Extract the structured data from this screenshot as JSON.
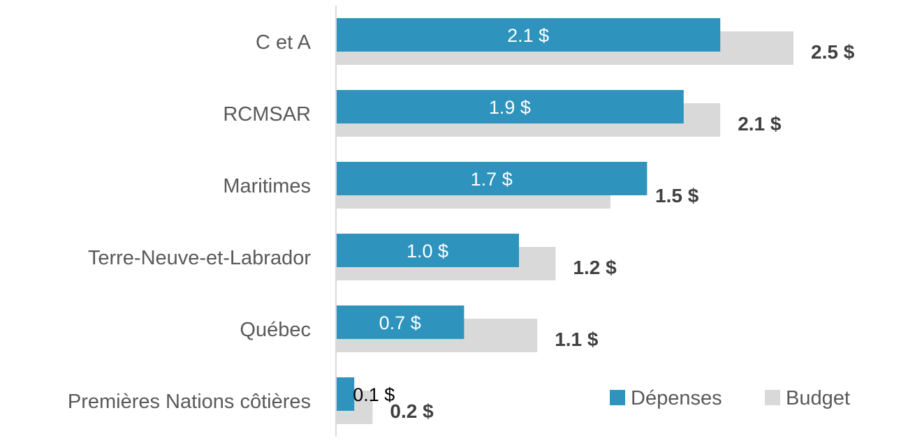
{
  "chart_data": {
    "type": "bar",
    "orientation": "horizontal",
    "categories": [
      "C et A",
      "RCMSAR",
      "Maritimes",
      "Terre-Neuve-et-Labrador",
      "Québec",
      "Premières Nations côtières"
    ],
    "series": [
      {
        "name": "Dépenses",
        "color": "#2e93bd",
        "values": [
          2.1,
          1.9,
          1.7,
          1.0,
          0.7,
          0.1
        ],
        "labels": [
          "2.1 $",
          "1.9 $",
          "1.7 $",
          "1.0 $",
          "0.7 $",
          "0.1 $"
        ]
      },
      {
        "name": "Budget",
        "color": "#d9d9d9",
        "values": [
          2.5,
          2.1,
          1.5,
          1.2,
          1.1,
          0.2
        ],
        "labels": [
          "2.5 $",
          "2.1 $",
          "1.5 $",
          "1.2 $",
          "1.1 $",
          "0.2 $"
        ]
      }
    ],
    "title": "",
    "xlabel": "",
    "ylabel": "",
    "xlim": [
      0,
      2.5
    ],
    "grid": false,
    "legend_position": "bottom-right"
  }
}
